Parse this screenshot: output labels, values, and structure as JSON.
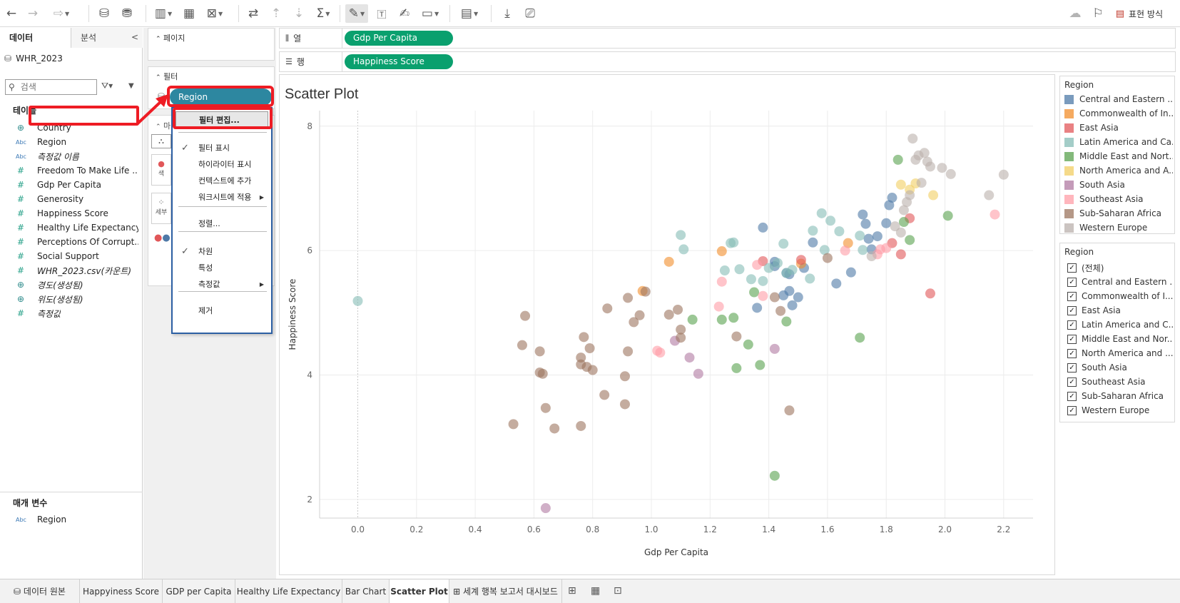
{
  "toolbar": {
    "present_label": "표현 방식"
  },
  "data_pane": {
    "tabs": [
      "데이터",
      "분석"
    ],
    "data_source": "WHR_2023",
    "search_placeholder": "검색",
    "tables_title": "테이블",
    "fields": [
      {
        "name": "Country",
        "type": "globe",
        "italic": false
      },
      {
        "name": "Region",
        "type": "abc",
        "italic": false
      },
      {
        "name": "측정값 이름",
        "type": "abc",
        "italic": true
      },
      {
        "name": "Freedom To Make Life ...",
        "type": "hash",
        "italic": false
      },
      {
        "name": "Gdp Per Capita",
        "type": "hash",
        "italic": false
      },
      {
        "name": "Generosity",
        "type": "hash",
        "italic": false
      },
      {
        "name": "Happiness Score",
        "type": "hash",
        "italic": false
      },
      {
        "name": "Healthy Life Expectancy",
        "type": "hash",
        "italic": false
      },
      {
        "name": "Perceptions Of Corrupt...",
        "type": "hash",
        "italic": false
      },
      {
        "name": "Social Support",
        "type": "hash",
        "italic": false
      },
      {
        "name": "WHR_2023.csv(카운트)",
        "type": "hash",
        "italic": true
      },
      {
        "name": "경도(생성됨)",
        "type": "globe",
        "italic": true
      },
      {
        "name": "위도(생성됨)",
        "type": "globe",
        "italic": true
      },
      {
        "name": "측정값",
        "type": "hash",
        "italic": true
      }
    ],
    "params_title": "매개 변수",
    "params": [
      {
        "name": "Region",
        "type": "abc"
      }
    ]
  },
  "cards": {
    "pages_title": "페이지",
    "filters_title": "필터",
    "filter_pill": "Region",
    "marks_stub": "마",
    "color_stub": "색",
    "detail_stub": "세부"
  },
  "shelves": {
    "columns_label": "열",
    "columns_pill": "Gdp Per Capita",
    "rows_label": "행",
    "rows_pill": "Happiness Score"
  },
  "context_menu": {
    "items": [
      {
        "label": "필터 편집...",
        "checked": false,
        "submenu": false
      },
      {
        "label": "필터 표시",
        "checked": true,
        "submenu": false
      },
      {
        "label": "하이라이터 표시",
        "checked": false,
        "submenu": false
      },
      {
        "label": "컨텍스트에 추가",
        "checked": false,
        "submenu": false
      },
      {
        "label": "워크시트에 적용",
        "checked": false,
        "submenu": true
      },
      {
        "label": "정렬...",
        "checked": false,
        "submenu": false
      },
      {
        "label": "차원",
        "checked": true,
        "submenu": false
      },
      {
        "label": "특성",
        "checked": false,
        "submenu": false
      },
      {
        "label": "측정값",
        "checked": false,
        "submenu": true
      },
      {
        "label": "제거",
        "checked": false,
        "submenu": false
      }
    ]
  },
  "legend": {
    "title": "Region",
    "items": [
      {
        "label": "Central and Eastern ...",
        "color": "#4e79a7"
      },
      {
        "label": "Commonwealth of In...",
        "color": "#f28e2b"
      },
      {
        "label": "East Asia",
        "color": "#e15759"
      },
      {
        "label": "Latin America and Ca...",
        "color": "#86bcb6"
      },
      {
        "label": "Middle East and Nort...",
        "color": "#59a14f"
      },
      {
        "label": "North America and A...",
        "color": "#f1ce63"
      },
      {
        "label": "South Asia",
        "color": "#b07aa1"
      },
      {
        "label": "Southeast Asia",
        "color": "#ff9da7"
      },
      {
        "label": "Sub-Saharan Africa",
        "color": "#9c755f"
      },
      {
        "label": "Western Europe",
        "color": "#bab0ac"
      }
    ]
  },
  "filter_list": {
    "title": "Region",
    "items": [
      "(전체)",
      "Central and Eastern ...",
      "Commonwealth of I...",
      "East Asia",
      "Latin America and C...",
      "Middle East and Nor...",
      "North America and ...",
      "South Asia",
      "Southeast Asia",
      "Sub-Saharan Africa",
      "Western Europe"
    ]
  },
  "sheet_tabs": [
    {
      "label": "데이터 원본",
      "active": false
    },
    {
      "label": "Happyiness Score",
      "active": false
    },
    {
      "label": "GDP per Capita",
      "active": false
    },
    {
      "label": "Healthy Life Expectancy",
      "active": false
    },
    {
      "label": "Bar Chart",
      "active": false
    },
    {
      "label": "Scatter Plot",
      "active": true
    },
    {
      "label": "세계 행복 보고서 대시보드",
      "active": false
    }
  ],
  "chart_data": {
    "type": "scatter",
    "title": "Scatter Plot",
    "xlabel": "Gdp Per Capita",
    "ylabel": "Happiness Score",
    "xlim": [
      -0.13,
      2.3
    ],
    "ylim": [
      1.7,
      8.25
    ],
    "xticks": [
      "0.0",
      "0.2",
      "0.4",
      "0.6",
      "0.8",
      "1.0",
      "1.2",
      "1.4",
      "1.6",
      "1.8",
      "2.0",
      "2.2"
    ],
    "yticks": [
      "2",
      "4",
      "6",
      "8"
    ],
    "grid": true,
    "legend_position": "right",
    "series": [
      {
        "name": "Central and Eastern ...",
        "x": [
          1.38,
          1.42,
          1.46,
          1.47,
          1.5,
          1.52,
          1.55,
          1.63,
          1.68,
          1.72,
          1.73,
          1.74,
          1.75,
          1.77,
          1.8,
          1.81,
          1.82,
          1.36,
          1.45,
          1.48,
          1.42,
          1.47
        ],
        "y": [
          6.37,
          5.82,
          5.64,
          5.35,
          5.25,
          5.72,
          6.13,
          5.47,
          5.65,
          6.58,
          6.43,
          6.19,
          6.02,
          6.23,
          6.44,
          6.73,
          6.85,
          5.08,
          5.28,
          5.12,
          5.75,
          5.62
        ]
      },
      {
        "name": "Commonwealth of In...",
        "x": [
          0.97,
          1.06,
          1.24,
          1.51,
          1.67
        ],
        "y": [
          5.35,
          5.82,
          5.99,
          5.79,
          6.12
        ]
      },
      {
        "name": "East Asia",
        "x": [
          1.38,
          1.51,
          1.82,
          1.85,
          1.88,
          1.95
        ],
        "y": [
          5.83,
          5.85,
          6.12,
          5.94,
          6.52,
          5.31
        ]
      },
      {
        "name": "Latin America and Ca...",
        "x": [
          0.0,
          1.1,
          1.11,
          1.25,
          1.27,
          1.28,
          1.3,
          1.34,
          1.38,
          1.4,
          1.43,
          1.45,
          1.48,
          1.54,
          1.55,
          1.58,
          1.59,
          1.61,
          1.64,
          1.71,
          1.72,
          1.46
        ],
        "y": [
          5.19,
          6.25,
          6.02,
          5.68,
          6.12,
          6.13,
          5.7,
          5.54,
          5.51,
          5.72,
          5.8,
          6.11,
          5.69,
          5.55,
          6.32,
          6.6,
          6.01,
          6.48,
          6.31,
          6.24,
          6.01,
          5.64
        ]
      },
      {
        "name": "Middle East and Nort...",
        "x": [
          1.14,
          1.24,
          1.28,
          1.29,
          1.33,
          1.35,
          1.37,
          1.42,
          1.46,
          1.71,
          1.84,
          1.86,
          1.88,
          2.01
        ],
        "y": [
          4.89,
          4.89,
          4.92,
          4.11,
          4.49,
          5.33,
          4.16,
          2.38,
          4.86,
          4.6,
          7.46,
          6.46,
          6.17,
          6.56
        ]
      },
      {
        "name": "North America and A...",
        "x": [
          1.85,
          1.88,
          1.9,
          1.96
        ],
        "y": [
          7.06,
          6.98,
          7.08,
          6.89
        ]
      },
      {
        "name": "South Asia",
        "x": [
          0.64,
          1.08,
          1.13,
          1.16,
          1.42
        ],
        "y": [
          1.86,
          4.55,
          4.28,
          4.02,
          4.42
        ]
      },
      {
        "name": "Southeast Asia",
        "x": [
          1.02,
          1.03,
          1.23,
          1.24,
          1.36,
          1.38,
          1.66,
          1.77,
          1.8,
          2.17,
          1.78
        ],
        "y": [
          4.39,
          4.36,
          5.1,
          5.5,
          5.77,
          5.27,
          6.0,
          5.94,
          6.04,
          6.58,
          6.02
        ]
      },
      {
        "name": "Sub-Saharan Africa",
        "x": [
          0.53,
          0.56,
          0.57,
          0.62,
          0.62,
          0.63,
          0.64,
          0.67,
          0.76,
          0.76,
          0.76,
          0.77,
          0.78,
          0.79,
          0.8,
          0.84,
          0.85,
          0.91,
          0.91,
          0.92,
          0.92,
          0.94,
          0.96,
          0.98,
          1.06,
          1.09,
          1.1,
          1.1,
          1.29,
          1.42,
          1.47,
          1.6,
          1.44
        ],
        "y": [
          3.21,
          4.48,
          4.95,
          4.38,
          4.04,
          4.02,
          3.47,
          3.14,
          3.18,
          4.28,
          4.17,
          4.61,
          4.13,
          4.43,
          4.08,
          3.68,
          5.07,
          3.98,
          3.53,
          4.38,
          5.24,
          4.85,
          4.96,
          5.34,
          4.97,
          5.05,
          4.73,
          4.6,
          4.62,
          5.25,
          3.43,
          5.88,
          5.03
        ]
      },
      {
        "name": "Western Europe",
        "x": [
          1.89,
          1.91,
          1.93,
          1.94,
          1.99,
          2.02,
          2.2,
          2.15,
          1.87,
          1.88,
          1.92,
          1.83,
          1.85,
          1.75,
          1.86,
          1.9,
          1.95
        ],
        "y": [
          7.8,
          7.53,
          7.57,
          7.43,
          7.33,
          7.23,
          7.22,
          6.89,
          6.78,
          6.89,
          7.09,
          6.39,
          6.29,
          5.91,
          6.65,
          7.46,
          7.35
        ]
      }
    ]
  }
}
